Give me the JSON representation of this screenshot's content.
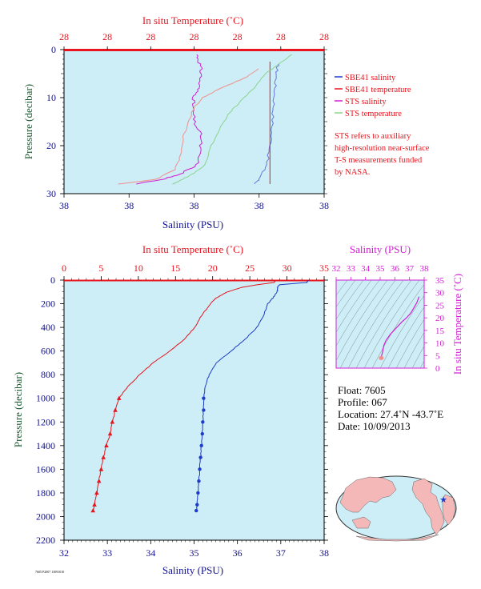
{
  "colors": {
    "panel_bg": "#cdeef6",
    "red": "#e8141e",
    "blue": "#1e3cc8",
    "magenta": "#d21ed2",
    "salmon": "#f0908c",
    "light_blue": "#6478dc",
    "light_green": "#8cd28c",
    "green_label": "#1e5a32",
    "navy_label": "#101090"
  },
  "top_panel": {
    "top_axis_title": "In situ Temperature (˚C)",
    "bottom_axis_title": "Salinity (PSU)",
    "left_axis_title": "Pressure (decibar)",
    "top_ticks": [
      "28",
      "28",
      "28",
      "28",
      "28",
      "28",
      "28"
    ],
    "bottom_ticks": [
      "38",
      "38",
      "38",
      "38",
      "38"
    ],
    "left_ticks": [
      "0",
      "10",
      "20",
      "30"
    ],
    "legend": [
      {
        "label": "SBE41 salinity",
        "color": "#1e3cc8"
      },
      {
        "label": "SBE41 temperature",
        "color": "#e8141e"
      },
      {
        "label": "STS salinity",
        "color": "#d21ed2"
      },
      {
        "label": "STS temperature",
        "color": "#8cd28c"
      }
    ],
    "note": [
      "STS refers to auxiliary",
      "high-resolution near-surface",
      "T-S measurements funded",
      "by NASA."
    ]
  },
  "bottom_panel": {
    "top_axis_title": "In situ Temperature (˚C)",
    "bottom_axis_title": "Salinity (PSU)",
    "left_axis_title": "Pressure (decibar)",
    "top_ticks": [
      "0",
      "5",
      "10",
      "15",
      "20",
      "25",
      "30",
      "35"
    ],
    "bottom_ticks": [
      "32",
      "33",
      "34",
      "35",
      "36",
      "37",
      "38"
    ],
    "left_ticks": [
      "0",
      "200",
      "400",
      "600",
      "800",
      "1000",
      "1200",
      "1400",
      "1600",
      "1800",
      "2000",
      "2200"
    ]
  },
  "ts_inset": {
    "top_axis_title": "Salinity (PSU)",
    "right_axis_title": "In situ Temperature (˚C)",
    "top_ticks": [
      "32",
      "33",
      "34",
      "35",
      "36",
      "37",
      "38"
    ],
    "right_ticks": [
      "0",
      "5",
      "10",
      "15",
      "20",
      "25",
      "30",
      "35"
    ]
  },
  "float_info": {
    "float": "Float:  7605",
    "profile": "Profile:  067",
    "location": "Location:  27.4˚N  -43.7˚E",
    "date": "Date:  10/09/2013"
  },
  "footer": "7605 P2007 13091010",
  "chart_data": [
    {
      "type": "line",
      "title": "",
      "x_top_label": "In situ Temperature (˚C)",
      "x_bottom_label": "Salinity (PSU)",
      "ylabel": "Pressure (decibar)",
      "ylim": [
        30,
        0
      ],
      "series": [
        {
          "name": "SBE41 salinity",
          "axis": "salinity",
          "pressure": [
            3,
            5,
            8,
            12,
            16,
            20,
            24,
            27,
            28
          ],
          "values": [
            37.98,
            37.97,
            37.96,
            37.95,
            37.94,
            37.93,
            37.9,
            37.85,
            37.82
          ]
        },
        {
          "name": "SBE41 temperature",
          "axis": "temperature",
          "pressure": [
            2.5,
            28
          ],
          "values": [
            28.4,
            28.4
          ]
        },
        {
          "name": "STS salinity",
          "axis": "salinity",
          "pressure": [
            1,
            3,
            5,
            8,
            10,
            12,
            15,
            18,
            21,
            24,
            26,
            27,
            28
          ],
          "values": [
            37.42,
            37.44,
            37.45,
            37.43,
            37.4,
            37.39,
            37.4,
            37.45,
            37.44,
            37.42,
            37.3,
            37.18,
            37.0
          ]
        },
        {
          "name": "STS temperature",
          "axis": "temperature",
          "pressure": [
            1,
            3,
            5,
            8,
            11,
            13,
            16,
            20,
            24,
            26,
            27.5,
            28
          ],
          "values": [
            28.6,
            28.48,
            28.36,
            28.25,
            28.12,
            28.03,
            27.95,
            27.86,
            27.8,
            27.68,
            27.55,
            27.5
          ]
        },
        {
          "name": "",
          "axis": "temperature",
          "color": "salmon",
          "pressure": [
            4,
            6,
            8,
            10,
            12,
            15,
            18,
            22,
            25,
            27,
            28
          ],
          "values": [
            28.3,
            28.16,
            27.95,
            27.78,
            27.7,
            27.65,
            27.6,
            27.58,
            27.52,
            27.35,
            27.0
          ]
        }
      ]
    },
    {
      "type": "line",
      "title": "",
      "x_top_label": "In situ Temperature (˚C)",
      "x_bottom_label": "Salinity (PSU)",
      "ylabel": "Pressure (decibar)",
      "xlim_temperature": [
        0,
        35
      ],
      "xlim_salinity": [
        32,
        38
      ],
      "ylim": [
        2200,
        0
      ],
      "series": [
        {
          "name": "temperature",
          "axis": "temperature",
          "pressure": [
            0,
            20,
            40,
            60,
            80,
            100,
            150,
            200,
            300,
            400,
            500,
            600,
            700,
            800,
            900,
            1000,
            1100,
            1200,
            1300,
            1400,
            1500,
            1600,
            1700,
            1800,
            1900,
            1950
          ],
          "values": [
            28.4,
            28.3,
            26.0,
            24.0,
            23.0,
            22.0,
            20.5,
            19.7,
            18.5,
            17.6,
            16.2,
            14.2,
            12.0,
            10.2,
            8.6,
            7.4,
            6.9,
            6.5,
            6.2,
            5.7,
            5.3,
            5.0,
            4.7,
            4.4,
            4.1,
            3.9
          ]
        },
        {
          "name": "salinity",
          "axis": "salinity",
          "pressure": [
            0,
            20,
            40,
            60,
            80,
            100,
            150,
            200,
            300,
            400,
            500,
            600,
            700,
            800,
            900,
            1000,
            1100,
            1200,
            1300,
            1400,
            1500,
            1600,
            1700,
            1800,
            1900,
            1950
          ],
          "values": [
            37.65,
            37.6,
            36.97,
            36.92,
            36.93,
            36.91,
            36.82,
            36.7,
            36.6,
            36.45,
            36.18,
            35.85,
            35.52,
            35.35,
            35.25,
            35.22,
            35.22,
            35.2,
            35.19,
            35.17,
            35.15,
            35.13,
            35.11,
            35.09,
            35.07,
            35.05
          ]
        }
      ]
    },
    {
      "type": "scatter",
      "title": "",
      "xlabel": "Salinity (PSU)",
      "ylabel": "In situ Temperature (˚C)",
      "xlim": [
        32,
        38
      ],
      "ylim": [
        0,
        35
      ],
      "series": [
        {
          "name": "",
          "x": [
            35.05,
            35.1,
            35.15,
            35.2,
            35.25,
            35.4,
            35.7,
            36.1,
            36.5,
            36.8,
            37.1,
            37.3,
            37.5,
            37.65
          ],
          "y": [
            4,
            5,
            6,
            7.5,
            9,
            11,
            13.5,
            16,
            18.5,
            20,
            22,
            24,
            26,
            28.4
          ]
        }
      ]
    }
  ]
}
